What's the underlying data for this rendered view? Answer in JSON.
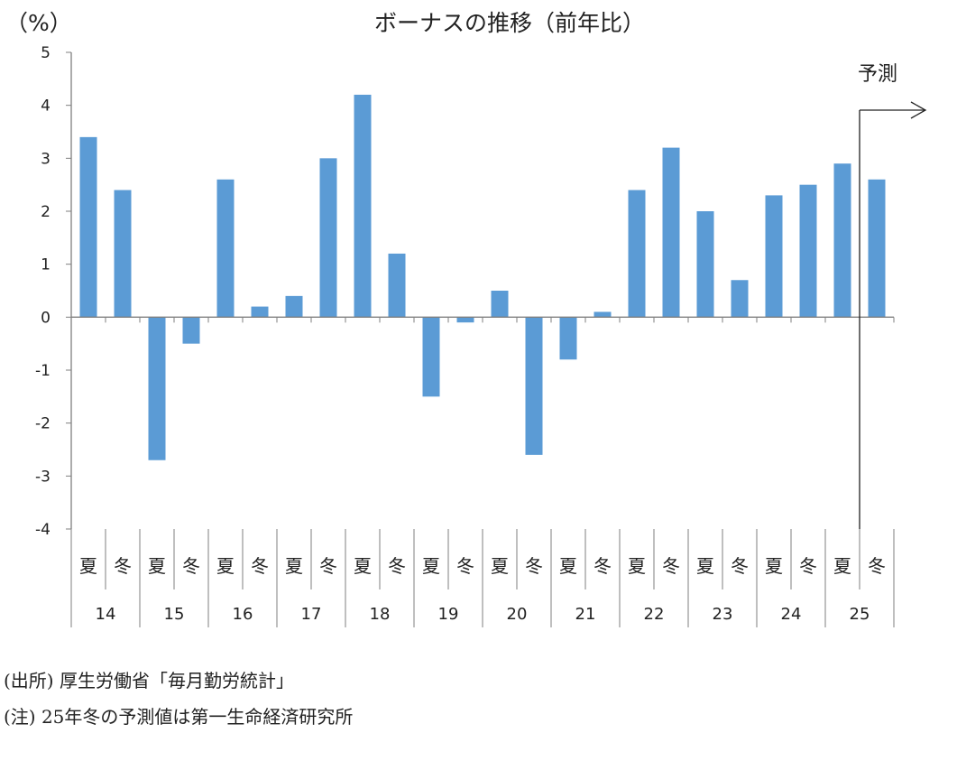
{
  "chart_data": {
    "type": "bar",
    "title": "ボーナスの推移（前年比）",
    "ylabel": "（%）",
    "ylim": [
      -4,
      5
    ],
    "yticks": [
      5,
      4,
      3,
      2,
      1,
      0,
      -1,
      -2,
      -3,
      -4
    ],
    "season_labels": [
      "夏",
      "冬"
    ],
    "years": [
      "14",
      "15",
      "16",
      "17",
      "18",
      "19",
      "20",
      "21",
      "22",
      "23",
      "24",
      "25"
    ],
    "categories": [
      "14夏",
      "14冬",
      "15夏",
      "15冬",
      "16夏",
      "16冬",
      "17夏",
      "17冬",
      "18夏",
      "18冬",
      "19夏",
      "19冬",
      "20夏",
      "20冬",
      "21夏",
      "21冬",
      "22夏",
      "22冬",
      "23夏",
      "23冬",
      "24夏",
      "24冬",
      "25夏",
      "25冬"
    ],
    "values": [
      3.4,
      2.4,
      -2.7,
      -0.5,
      2.6,
      0.2,
      0.4,
      3.0,
      4.2,
      1.2,
      -1.5,
      -0.1,
      0.5,
      -2.6,
      -0.8,
      0.1,
      2.4,
      3.2,
      2.0,
      0.7,
      2.3,
      2.5,
      2.9,
      2.6
    ],
    "forecast_label": "予測",
    "forecast_from": "25冬",
    "bar_color": "#5b9bd5",
    "grid": false,
    "legend": "none"
  },
  "notes": {
    "source": "(出所) 厚生労働省「毎月勤労統計」",
    "note": "(注) 25年冬の予測値は第一生命経済研究所"
  }
}
